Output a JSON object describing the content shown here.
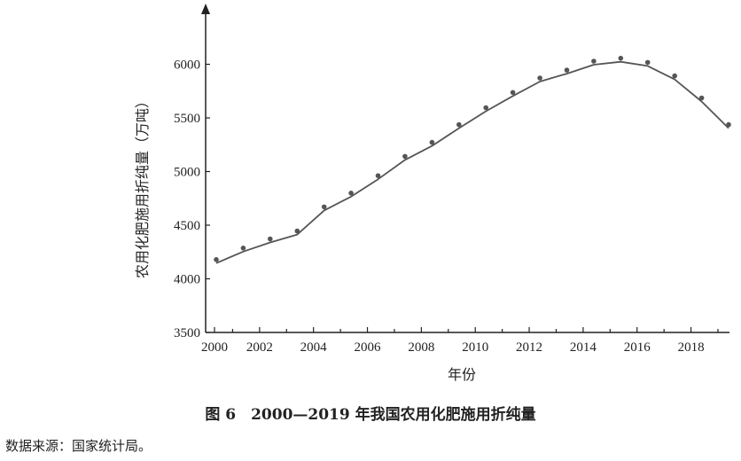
{
  "chart_data": {
    "type": "line",
    "title": "",
    "xlabel": "年份",
    "ylabel": "农用化肥施用折纯量（万吨）",
    "x": [
      2000,
      2001,
      2002,
      2003,
      2004,
      2005,
      2006,
      2007,
      2008,
      2009,
      2010,
      2011,
      2012,
      2013,
      2014,
      2015,
      2016,
      2017,
      2018,
      2019
    ],
    "series": [
      {
        "name": "",
        "values": [
          4146,
          4254,
          4339,
          4412,
          4637,
          4766,
          4928,
          5108,
          5239,
          5404,
          5562,
          5704,
          5839,
          5912,
          5996,
          6023,
          5984,
          5859,
          5653,
          5404
        ]
      }
    ],
    "fitted_line": [
      4146,
      4254,
      4339,
      4412,
      4637,
      4766,
      4928,
      5108,
      5239,
      5404,
      5562,
      5704,
      5839,
      5912,
      5996,
      6023,
      5984,
      5859,
      5653,
      5404
    ],
    "xlim": [
      2000,
      2019
    ],
    "ylim": [
      3500,
      6500
    ],
    "x_ticks": [
      "2000",
      "2002",
      "2004",
      "2006",
      "2008",
      "2010",
      "2012",
      "2014",
      "2016",
      "2018"
    ],
    "y_ticks": [
      "3500",
      "4000",
      "4500",
      "5000",
      "5500",
      "6000"
    ],
    "grid": false,
    "legend": "none",
    "colors": {
      "line": "#555555",
      "points": "#555555",
      "axis": "#222222"
    }
  },
  "caption": "图 6　2000—2019 年我国农用化肥施用折纯量",
  "source": "数据来源：国家统计局。"
}
